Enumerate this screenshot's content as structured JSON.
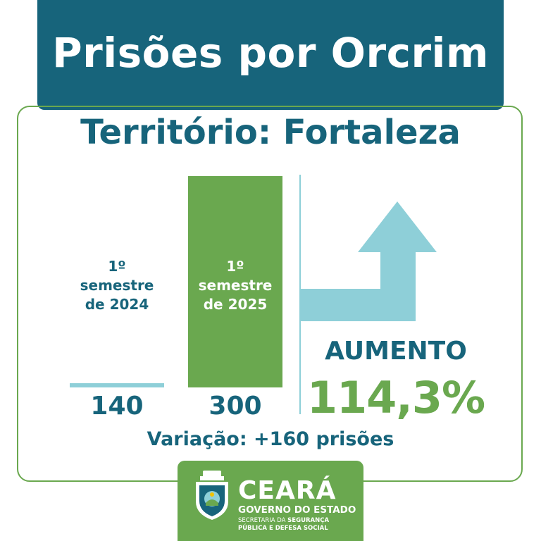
{
  "title": "Prisões por Orcrim",
  "subtitle": "Território: Fortaleza",
  "chart_data": {
    "type": "bar",
    "categories": [
      "1º semestre de 2024",
      "1º semestre de 2025"
    ],
    "category_lines": [
      [
        "1º semestre",
        "de 2024"
      ],
      [
        "1º semestre",
        "de 2025"
      ]
    ],
    "values": [
      140,
      300
    ],
    "value_labels": [
      "140",
      "300"
    ],
    "colors": [
      "#8ecfd8",
      "#6aa84f"
    ]
  },
  "summary": {
    "direction": "AUMENTO",
    "percent": "114,3%",
    "variation": "Variação: +160 prisões",
    "arrow_icon": "arrow-up-turn-icon"
  },
  "footer": {
    "brand": "CEARÁ",
    "government": "GOVERNO DO ESTADO",
    "secretariat_prefix": "SECRETARIA DA",
    "secretariat_highlight_1": "SEGURANÇA",
    "secretariat_highlight_2": "PÚBLICA E DEFESA SOCIAL",
    "crest_icon": "state-crest-icon"
  },
  "colors": {
    "primary": "#17647b",
    "green": "#6aa84f",
    "light_blue": "#8ecfd8"
  }
}
